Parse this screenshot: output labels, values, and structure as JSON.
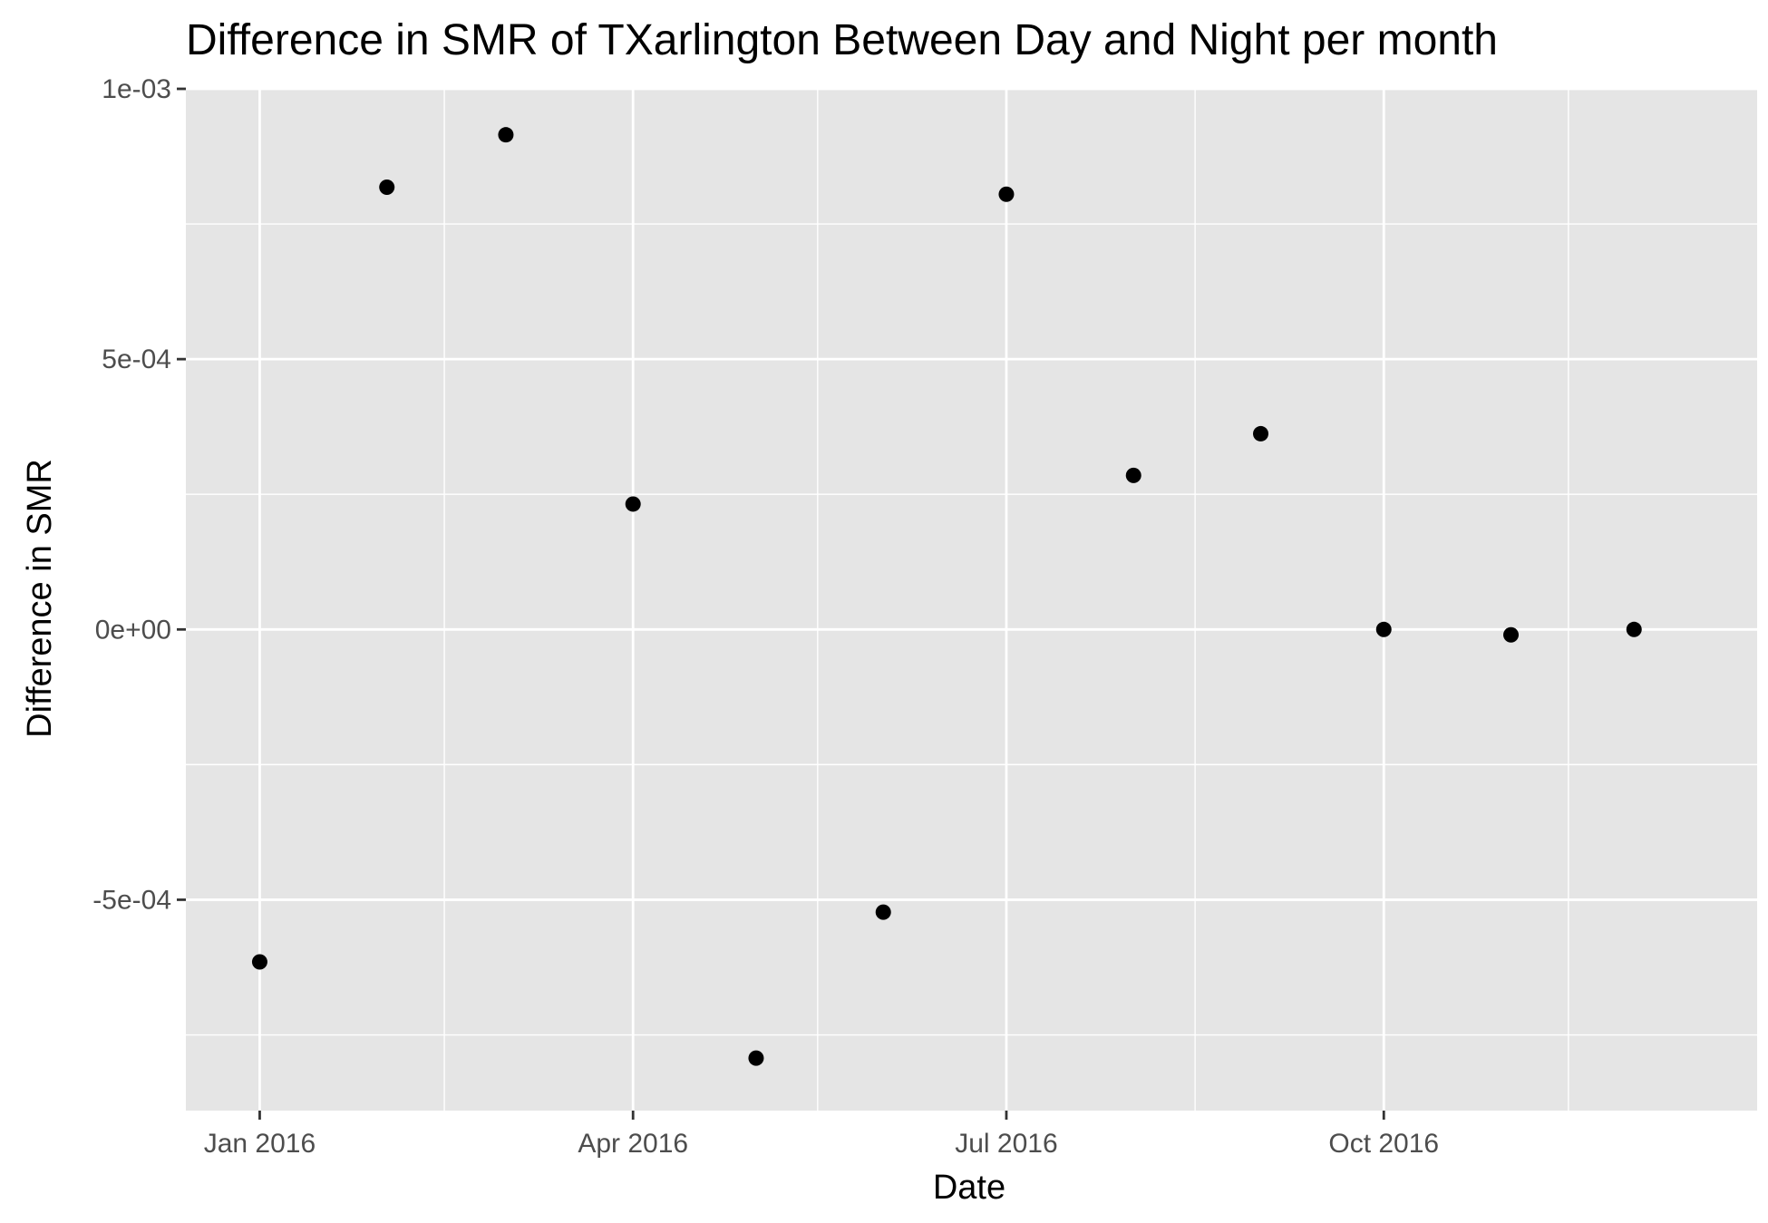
{
  "chart_data": {
    "type": "scatter",
    "title": "Difference in SMR of TXarlington Between Day and Night per month",
    "xlabel": "Date",
    "ylabel": "Difference in SMR",
    "x": [
      "2016-01-01",
      "2016-02-01",
      "2016-03-01",
      "2016-04-01",
      "2016-05-01",
      "2016-06-01",
      "2016-07-01",
      "2016-08-01",
      "2016-09-01",
      "2016-10-01",
      "2016-11-01",
      "2016-12-01"
    ],
    "series": [
      {
        "values": [
          -0.000615,
          0.000818,
          0.000915,
          0.000232,
          -0.000793,
          -0.000523,
          0.000805,
          0.000285,
          0.000362,
          0.0,
          -1e-05,
          0.0
        ]
      }
    ],
    "xlim": [
      "2015-12-14",
      "2016-12-31"
    ],
    "ylim": [
      -0.00089,
      0.001
    ],
    "x_ticks": [
      {
        "date": "2016-01-01",
        "label": "Jan 2016"
      },
      {
        "date": "2016-04-01",
        "label": "Apr 2016"
      },
      {
        "date": "2016-07-01",
        "label": "Jul 2016"
      },
      {
        "date": "2016-10-01",
        "label": "Oct 2016"
      }
    ],
    "x_minor_ticks": [
      "2016-02-15",
      "2016-05-16",
      "2016-08-16",
      "2016-11-15"
    ],
    "y_ticks": [
      {
        "value": 0.001,
        "label": "1e-03"
      },
      {
        "value": 0.0005,
        "label": "5e-04"
      },
      {
        "value": 0.0,
        "label": "0e+00"
      },
      {
        "value": -0.0005,
        "label": "-5e-04"
      }
    ],
    "y_minor_ticks": [
      0.00075,
      0.00025,
      -0.00025,
      -0.00075
    ],
    "grid": true,
    "legend": "none",
    "colors": {
      "panel_background": "#e5e5e5",
      "grid_line": "#ffffff",
      "point": "#000000",
      "tick_label": "#4d4d4d",
      "text": "#000000"
    }
  }
}
